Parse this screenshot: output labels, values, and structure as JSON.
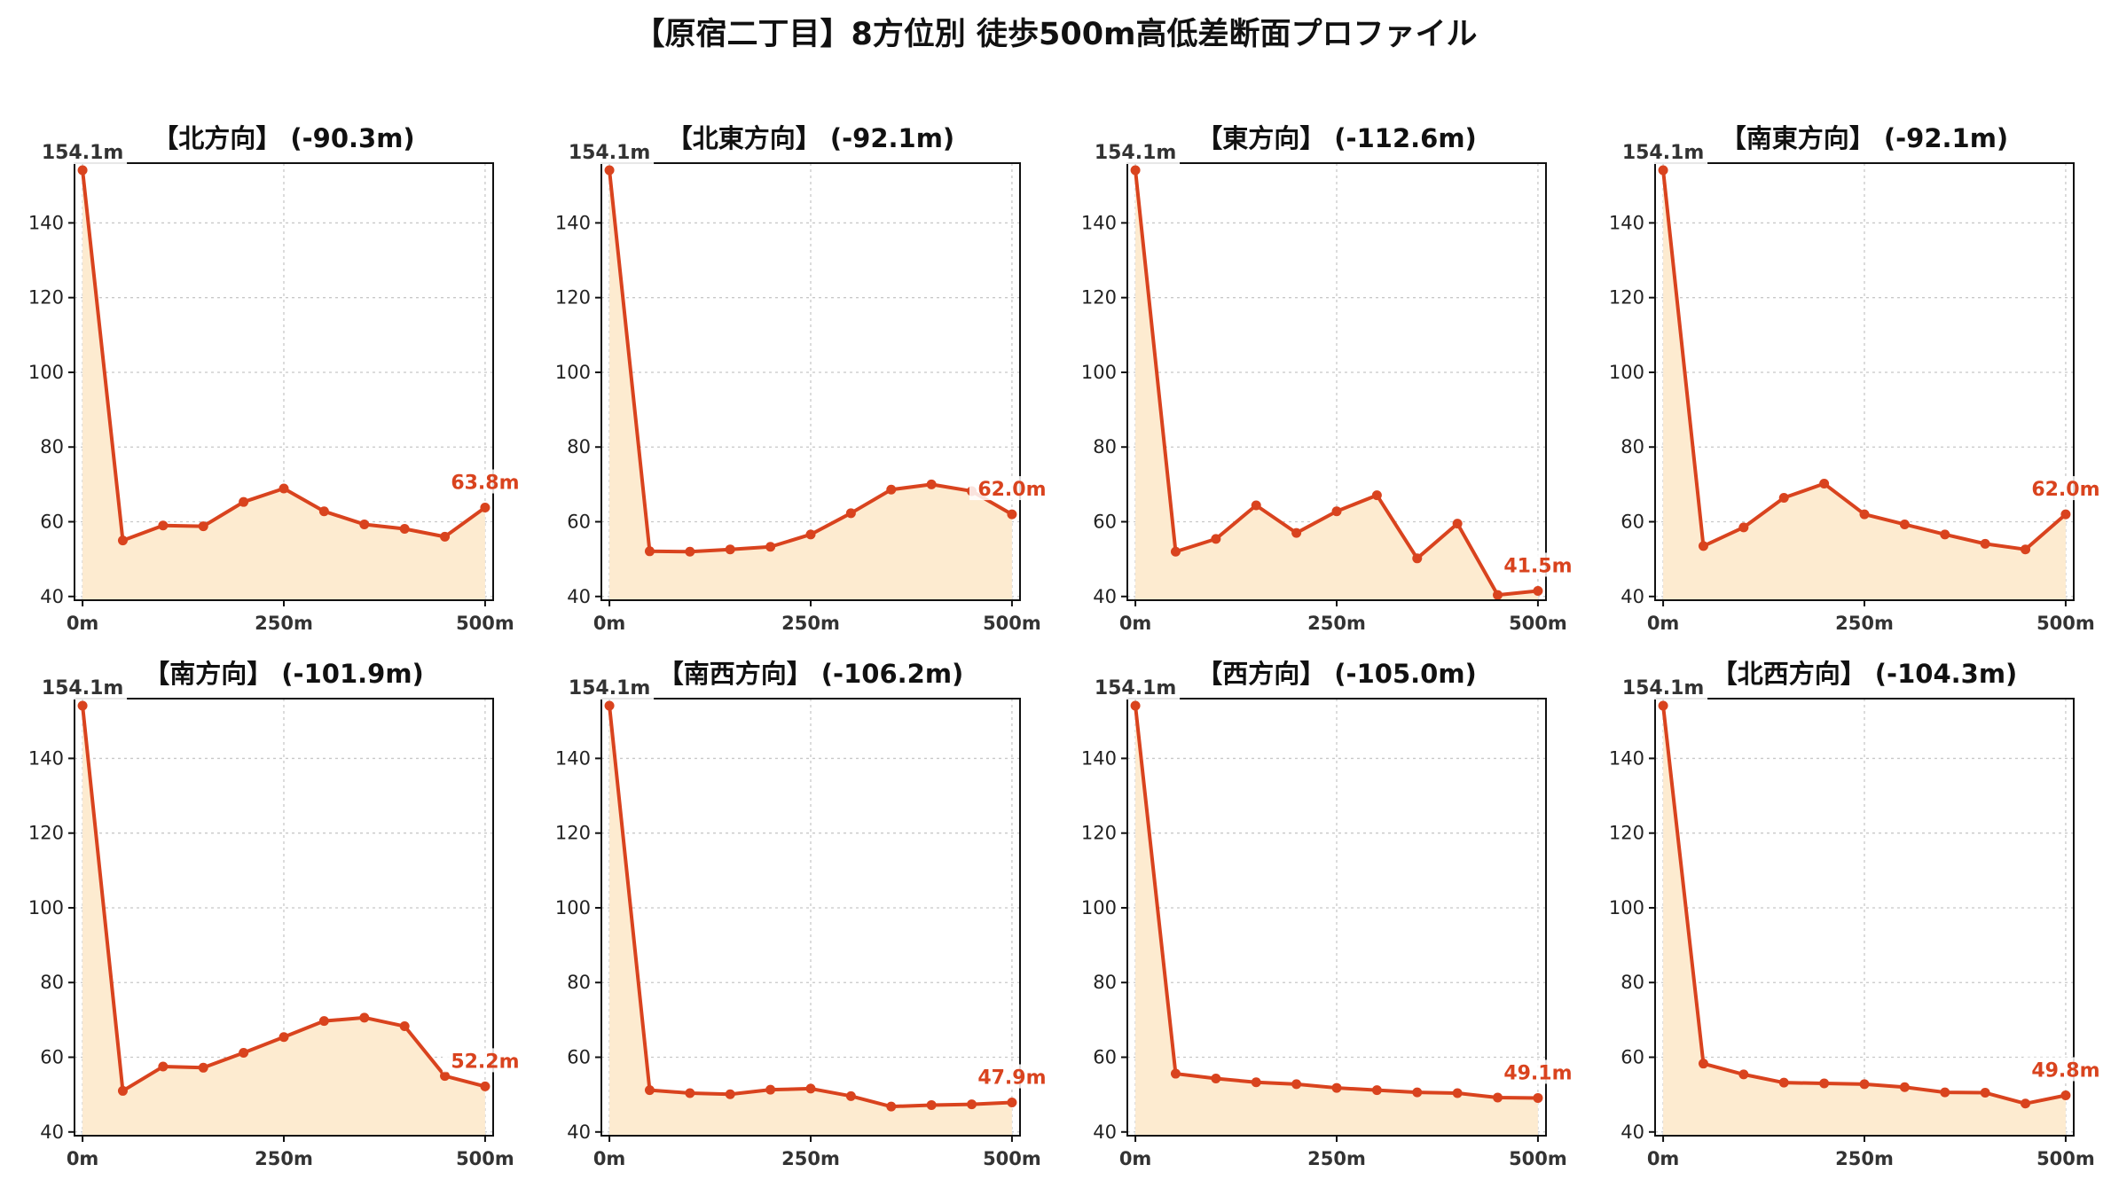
{
  "title": "【原宿二丁目】8方位別 徒歩500m高低差断面プロファイル",
  "colors": {
    "line": "#d9431e",
    "fill": "#fdebd0",
    "grid": "#c8c8c8",
    "axis": "#111111",
    "start_label_bg": "#ffffff"
  },
  "chart_data": [
    {
      "type": "area",
      "title": "【北方向】 (-90.3m)",
      "x": [
        0,
        50,
        100,
        150,
        200,
        250,
        300,
        350,
        400,
        450,
        500
      ],
      "series": [
        {
          "values": [
            154.1,
            55.0,
            59.0,
            58.8,
            65.3,
            68.9,
            62.8,
            59.3,
            58.1,
            56.0,
            63.8
          ]
        }
      ],
      "xticks": [
        "0m",
        "250m",
        "500m"
      ],
      "yticks": [
        40,
        60,
        80,
        100,
        120,
        140
      ],
      "ylim": [
        39,
        156
      ],
      "xlim": [
        -10,
        510
      ],
      "grid": true,
      "start_label": "154.1m",
      "end_label": "63.8m"
    },
    {
      "type": "area",
      "title": "【北東方向】 (-92.1m)",
      "x": [
        0,
        50,
        100,
        150,
        200,
        250,
        300,
        350,
        400,
        450,
        500
      ],
      "series": [
        {
          "values": [
            154.1,
            52.1,
            52.0,
            52.6,
            53.3,
            56.6,
            62.3,
            68.6,
            70.0,
            68.2,
            62.0
          ]
        }
      ],
      "xticks": [
        "0m",
        "250m",
        "500m"
      ],
      "yticks": [
        40,
        60,
        80,
        100,
        120,
        140
      ],
      "ylim": [
        39,
        156
      ],
      "xlim": [
        -10,
        510
      ],
      "grid": true,
      "start_label": "154.1m",
      "end_label": "62.0m"
    },
    {
      "type": "area",
      "title": "【東方向】 (-112.6m)",
      "x": [
        0,
        50,
        100,
        150,
        200,
        250,
        300,
        350,
        400,
        450,
        500
      ],
      "series": [
        {
          "values": [
            154.1,
            52.0,
            55.4,
            64.4,
            57.0,
            62.8,
            67.1,
            50.2,
            59.5,
            40.4,
            41.5
          ]
        }
      ],
      "xticks": [
        "0m",
        "250m",
        "500m"
      ],
      "yticks": [
        40,
        60,
        80,
        100,
        120,
        140
      ],
      "ylim": [
        39,
        156
      ],
      "xlim": [
        -10,
        510
      ],
      "grid": true,
      "start_label": "154.1m",
      "end_label": "41.5m"
    },
    {
      "type": "area",
      "title": "【南東方向】 (-92.1m)",
      "x": [
        0,
        50,
        100,
        150,
        200,
        250,
        300,
        350,
        400,
        450,
        500
      ],
      "series": [
        {
          "values": [
            154.1,
            53.5,
            58.5,
            66.4,
            70.2,
            62.0,
            59.3,
            56.6,
            54.1,
            52.6,
            62.0
          ]
        }
      ],
      "xticks": [
        "0m",
        "250m",
        "500m"
      ],
      "yticks": [
        40,
        60,
        80,
        100,
        120,
        140
      ],
      "ylim": [
        39,
        156
      ],
      "xlim": [
        -10,
        510
      ],
      "grid": true,
      "start_label": "154.1m",
      "end_label": "62.0m"
    },
    {
      "type": "area",
      "title": "【南方向】 (-101.9m)",
      "x": [
        0,
        50,
        100,
        150,
        200,
        250,
        300,
        350,
        400,
        450,
        500
      ],
      "series": [
        {
          "values": [
            154.1,
            51.0,
            57.5,
            57.2,
            61.2,
            65.4,
            69.7,
            70.6,
            68.3,
            55.0,
            52.2
          ]
        }
      ],
      "xticks": [
        "0m",
        "250m",
        "500m"
      ],
      "yticks": [
        40,
        60,
        80,
        100,
        120,
        140
      ],
      "ylim": [
        39,
        156
      ],
      "xlim": [
        -10,
        510
      ],
      "grid": true,
      "start_label": "154.1m",
      "end_label": "52.2m"
    },
    {
      "type": "area",
      "title": "【南西方向】 (-106.2m)",
      "x": [
        0,
        50,
        100,
        150,
        200,
        250,
        300,
        350,
        400,
        450,
        500
      ],
      "series": [
        {
          "values": [
            154.1,
            51.2,
            50.4,
            50.1,
            51.3,
            51.6,
            49.6,
            46.8,
            47.2,
            47.4,
            47.9
          ]
        }
      ],
      "xticks": [
        "0m",
        "250m",
        "500m"
      ],
      "yticks": [
        40,
        60,
        80,
        100,
        120,
        140
      ],
      "ylim": [
        39,
        156
      ],
      "xlim": [
        -10,
        510
      ],
      "grid": true,
      "start_label": "154.1m",
      "end_label": "47.9m"
    },
    {
      "type": "area",
      "title": "【西方向】 (-105.0m)",
      "x": [
        0,
        50,
        100,
        150,
        200,
        250,
        300,
        350,
        400,
        450,
        500
      ],
      "series": [
        {
          "values": [
            154.1,
            55.6,
            54.3,
            53.3,
            52.8,
            51.8,
            51.2,
            50.6,
            50.4,
            49.2,
            49.1
          ]
        }
      ],
      "xticks": [
        "0m",
        "250m",
        "500m"
      ],
      "yticks": [
        40,
        60,
        80,
        100,
        120,
        140
      ],
      "ylim": [
        39,
        156
      ],
      "xlim": [
        -10,
        510
      ],
      "grid": true,
      "start_label": "154.1m",
      "end_label": "49.1m"
    },
    {
      "type": "area",
      "title": "【北西方向】 (-104.3m)",
      "x": [
        0,
        50,
        100,
        150,
        200,
        250,
        300,
        350,
        400,
        450,
        500
      ],
      "series": [
        {
          "values": [
            154.1,
            58.3,
            55.4,
            53.2,
            53.0,
            52.8,
            52.0,
            50.6,
            50.5,
            47.6,
            49.8
          ]
        }
      ],
      "xticks": [
        "0m",
        "250m",
        "500m"
      ],
      "yticks": [
        40,
        60,
        80,
        100,
        120,
        140
      ],
      "ylim": [
        39,
        156
      ],
      "xlim": [
        -10,
        510
      ],
      "grid": true,
      "start_label": "154.1m",
      "end_label": "49.8m"
    }
  ]
}
